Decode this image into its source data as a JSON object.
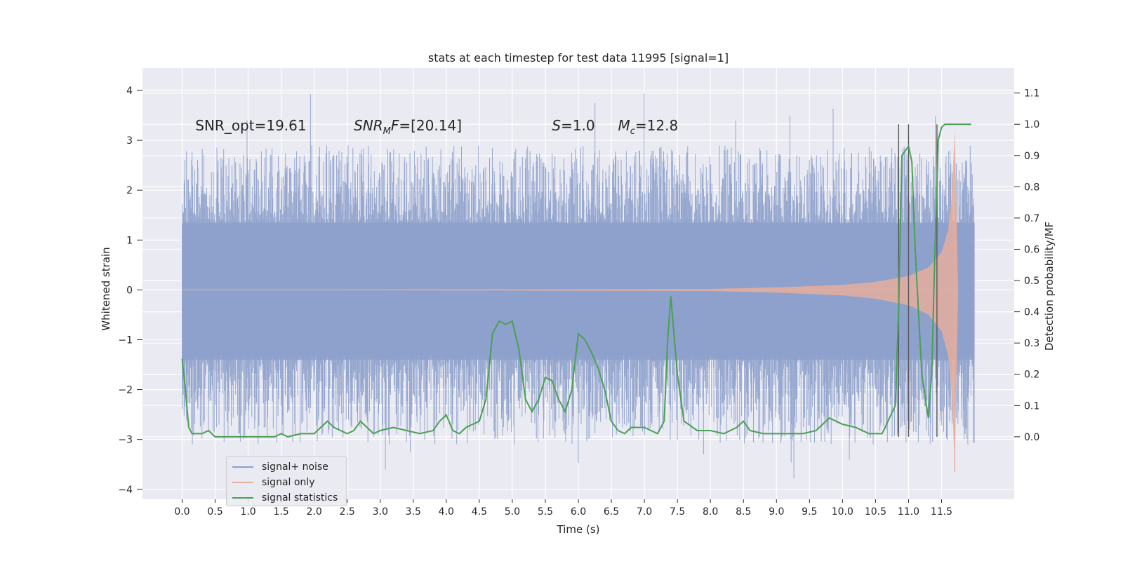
{
  "chart_data": {
    "type": "line",
    "title": "stats at each timestep for test data 11995 [signal=1]",
    "xlabel": "Time (s)",
    "ylabel": "Whitened strain",
    "y2label": "Detection probability/MF",
    "xlim": [
      -0.6,
      12.6
    ],
    "ylim": [
      -4.2,
      4.45
    ],
    "y2lim": [
      -0.2,
      1.18
    ],
    "xticks": [
      0.0,
      0.5,
      1.0,
      1.5,
      2.0,
      2.5,
      3.0,
      3.5,
      4.0,
      4.5,
      5.0,
      5.5,
      6.0,
      6.5,
      7.0,
      7.5,
      8.0,
      8.5,
      9.0,
      9.5,
      10.0,
      10.5,
      11.0,
      11.5
    ],
    "xtick_labels": [
      "0.0",
      "0.5",
      "1.0",
      "1.5",
      "2.0",
      "2.5",
      "3.0",
      "3.5",
      "4.0",
      "4.5",
      "5.0",
      "5.5",
      "6.0",
      "6.5",
      "7.0",
      "7.5",
      "8.0",
      "8.5",
      "9.0",
      "9.5",
      "10.0",
      "10.5",
      "11.0",
      "11.5"
    ],
    "yticks": [
      -4,
      -3,
      -2,
      -1,
      0,
      1,
      2,
      3,
      4
    ],
    "ytick_labels": [
      "−4",
      "−3",
      "−2",
      "−1",
      "0",
      "1",
      "2",
      "3",
      "4"
    ],
    "y2ticks": [
      0.0,
      0.1,
      0.2,
      0.3,
      0.4,
      0.5,
      0.6,
      0.7,
      0.8,
      0.9,
      1.0,
      1.1
    ],
    "y2tick_labels": [
      "0.0",
      "0.1",
      "0.2",
      "0.3",
      "0.4",
      "0.5",
      "0.6",
      "0.7",
      "0.8",
      "0.9",
      "1.0",
      "1.1"
    ],
    "grid": true,
    "legend_placement": "lower-left",
    "series": [
      {
        "name": "signal+ noise",
        "color": "#8da0cb",
        "axis": "left",
        "t_range": [
          0.0,
          12.0
        ],
        "band_core": [
          -1.4,
          1.35
        ],
        "band_spikes": [
          -3.8,
          4.1
        ]
      },
      {
        "name": "signal only",
        "color": "#e5ae9c",
        "axis": "left",
        "t_range": [
          0.0,
          11.75
        ],
        "envelope": {
          "t": [
            0.0,
            8.0,
            9.0,
            10.0,
            10.5,
            11.0,
            11.3,
            11.5,
            11.6,
            11.65,
            11.7,
            11.75
          ],
          "amp": [
            0.0,
            0.02,
            0.05,
            0.1,
            0.16,
            0.28,
            0.45,
            0.75,
            1.2,
            1.8,
            3.2,
            0.05
          ]
        }
      },
      {
        "name": "signal statistics",
        "color": "#4a9f55",
        "axis": "right",
        "x": [
          0.0,
          0.05,
          0.1,
          0.15,
          0.2,
          0.3,
          0.4,
          0.5,
          0.6,
          0.8,
          1.0,
          1.2,
          1.4,
          1.5,
          1.6,
          1.8,
          2.0,
          2.1,
          2.2,
          2.3,
          2.5,
          2.6,
          2.7,
          2.8,
          2.9,
          3.0,
          3.2,
          3.4,
          3.6,
          3.8,
          3.9,
          4.0,
          4.1,
          4.2,
          4.3,
          4.5,
          4.6,
          4.7,
          4.8,
          4.9,
          5.0,
          5.1,
          5.2,
          5.3,
          5.4,
          5.5,
          5.6,
          5.7,
          5.8,
          5.9,
          6.0,
          6.1,
          6.2,
          6.3,
          6.4,
          6.5,
          6.6,
          6.7,
          6.8,
          7.0,
          7.1,
          7.2,
          7.3,
          7.35,
          7.4,
          7.5,
          7.6,
          7.8,
          8.0,
          8.2,
          8.4,
          8.5,
          8.6,
          8.8,
          9.0,
          9.2,
          9.4,
          9.6,
          9.8,
          10.0,
          10.2,
          10.4,
          10.6,
          10.8,
          10.85,
          10.9,
          11.0,
          11.05,
          11.1,
          11.2,
          11.3,
          11.35,
          11.4,
          11.45,
          11.5,
          11.55,
          11.6,
          11.7,
          11.8,
          11.95
        ],
        "values": [
          0.25,
          0.15,
          0.03,
          0.01,
          0.01,
          0.01,
          0.02,
          0.0,
          0.0,
          0.0,
          0.0,
          0.0,
          0.0,
          0.01,
          0.0,
          0.01,
          0.01,
          0.03,
          0.05,
          0.03,
          0.01,
          0.02,
          0.05,
          0.03,
          0.01,
          0.02,
          0.03,
          0.02,
          0.01,
          0.02,
          0.05,
          0.07,
          0.02,
          0.01,
          0.03,
          0.05,
          0.12,
          0.33,
          0.37,
          0.36,
          0.37,
          0.28,
          0.12,
          0.08,
          0.12,
          0.19,
          0.18,
          0.12,
          0.08,
          0.15,
          0.33,
          0.31,
          0.27,
          0.22,
          0.15,
          0.05,
          0.02,
          0.01,
          0.03,
          0.03,
          0.02,
          0.01,
          0.05,
          0.3,
          0.45,
          0.2,
          0.05,
          0.02,
          0.02,
          0.01,
          0.03,
          0.05,
          0.02,
          0.01,
          0.01,
          0.01,
          0.01,
          0.02,
          0.06,
          0.04,
          0.03,
          0.01,
          0.01,
          0.1,
          0.4,
          0.9,
          0.93,
          0.88,
          0.6,
          0.2,
          0.06,
          0.2,
          0.6,
          0.95,
          0.99,
          1.0,
          1.0,
          1.0,
          1.0,
          1.0
        ]
      }
    ],
    "vlines": [
      10.85,
      11.0,
      11.43
    ],
    "annotations": [
      {
        "text": "SNR_opt=19.61",
        "x": 0.2
      },
      {
        "text": "SNR_MF=[20.14]",
        "x": 2.6
      },
      {
        "text": "S=1.0",
        "x": 5.6
      },
      {
        "text": "M_c=12.8",
        "x": 6.6
      }
    ],
    "annotation_y": 3.3
  }
}
